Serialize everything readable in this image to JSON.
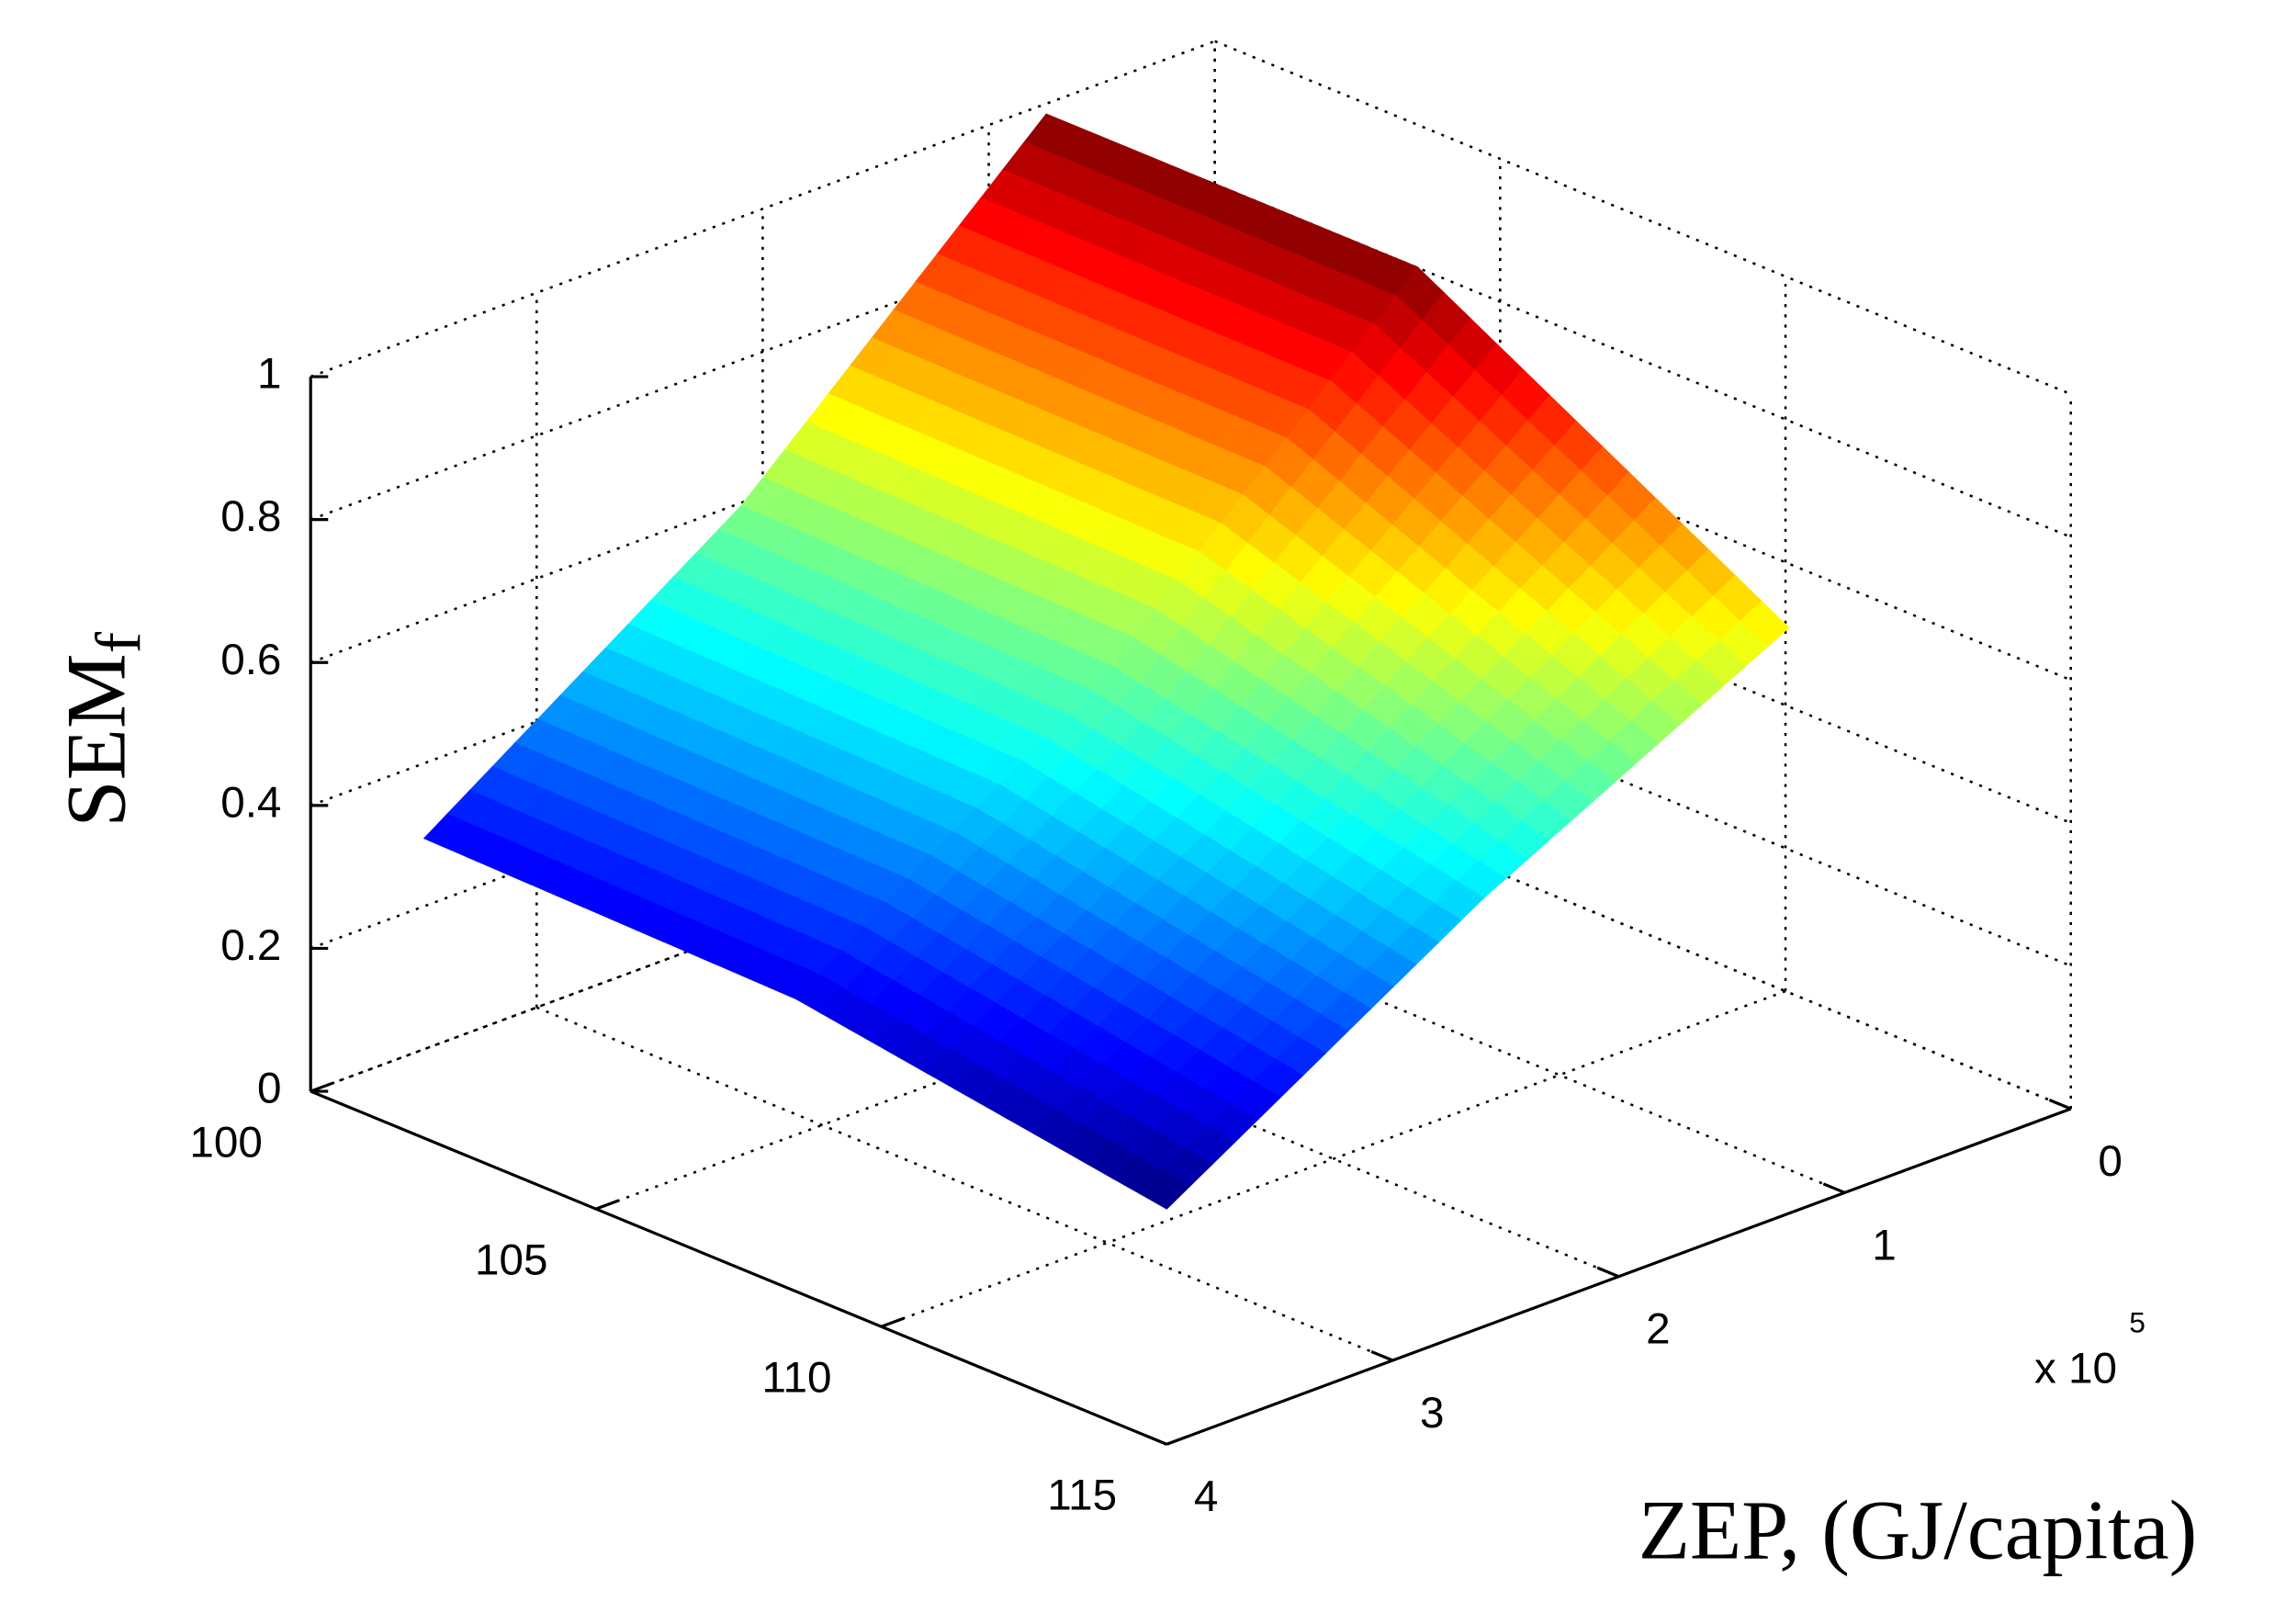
{
  "chart_data": {
    "type": "surface",
    "x": [
      102,
      108.5,
      115
    ],
    "y": [
      1.25,
      2.6,
      4
    ],
    "z": [
      [
        1.11,
        1.11,
        0.82
      ],
      [
        0.72,
        0.71,
        0.6
      ],
      [
        0.42,
        0.41,
        0.33
      ]
    ],
    "xlim": [
      100,
      115
    ],
    "xticks": [
      100,
      105,
      110,
      115
    ],
    "ylim": [
      0,
      4
    ],
    "yticks": [
      0,
      1,
      2,
      3,
      4
    ],
    "y_exponent_label": {
      "base": "x 10",
      "exponent": "5"
    },
    "zlim": [
      0,
      1
    ],
    "zticks": [
      0,
      0.2,
      0.4,
      0.6,
      0.8,
      1
    ],
    "zlabel": {
      "base": "SEM",
      "subscript": "f"
    },
    "ylabel": "ZEP, (GJ/capita)",
    "colormap": "jet",
    "grid": true
  }
}
